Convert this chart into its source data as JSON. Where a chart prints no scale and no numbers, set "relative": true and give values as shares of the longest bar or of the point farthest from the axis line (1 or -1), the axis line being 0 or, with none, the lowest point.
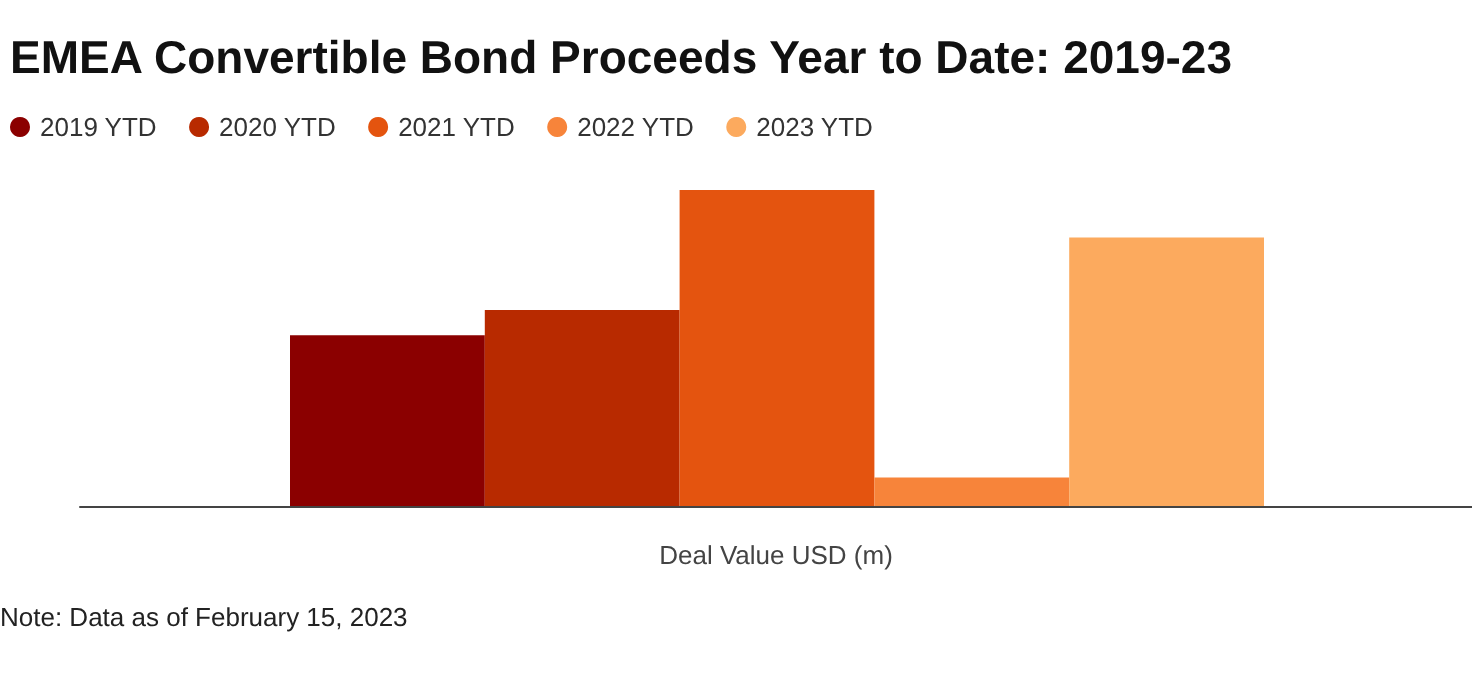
{
  "chart_data": {
    "type": "bar",
    "title": "EMEA Convertible Bond Proceeds Year to Date: 2019-23",
    "relative": true,
    "stacked": true,
    "xlabel": "Deal Value USD (m)",
    "categories": [
      null,
      null,
      null,
      null,
      null
    ],
    "series": [
      {
        "name": "2019 YTD",
        "color": "#8b0000",
        "values": [
          0.54,
          null,
          null,
          null,
          null
        ]
      },
      {
        "name": "2020 YTD",
        "color": "#b82a00",
        "values": [
          null,
          0.62,
          null,
          null,
          null
        ]
      },
      {
        "name": "2021 YTD",
        "color": "#e4540f",
        "values": [
          null,
          null,
          1,
          null,
          null
        ]
      },
      {
        "name": "2022 YTD",
        "color": "#f7843a",
        "values": [
          null,
          null,
          null,
          0.09,
          null
        ]
      },
      {
        "name": "2023 YTD",
        "color": "#fcaa5e",
        "values": [
          null,
          null,
          null,
          null,
          0.85
        ]
      }
    ],
    "legend": "top left",
    "grid": false,
    "annotations": [
      "Note: Data as of February 15, 2023"
    ]
  }
}
